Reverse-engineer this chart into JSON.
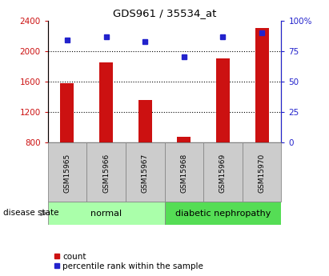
{
  "title": "GDS961 / 35534_at",
  "samples": [
    "GSM15965",
    "GSM15966",
    "GSM15967",
    "GSM15968",
    "GSM15969",
    "GSM15970"
  ],
  "bar_values": [
    1580,
    1850,
    1360,
    870,
    1900,
    2300
  ],
  "dot_values": [
    84,
    87,
    83,
    70,
    87,
    90
  ],
  "bar_baseline": 800,
  "ylim_left": [
    800,
    2400
  ],
  "ylim_right": [
    0,
    100
  ],
  "yticks_left": [
    800,
    1200,
    1600,
    2000,
    2400
  ],
  "yticks_right": [
    0,
    25,
    50,
    75,
    100
  ],
  "bar_color": "#cc1111",
  "dot_color": "#2222cc",
  "groups": [
    {
      "label": "normal",
      "indices": [
        0,
        1,
        2
      ],
      "color": "#aaffaa"
    },
    {
      "label": "diabetic nephropathy",
      "indices": [
        3,
        4,
        5
      ],
      "color": "#55dd55"
    }
  ],
  "disease_label": "disease state",
  "legend_bar_label": "count",
  "legend_dot_label": "percentile rank within the sample",
  "bg_color": "#ffffff",
  "tick_area_color": "#cccccc",
  "normal_color": "#aaffaa",
  "diabetic_color": "#55dd55"
}
